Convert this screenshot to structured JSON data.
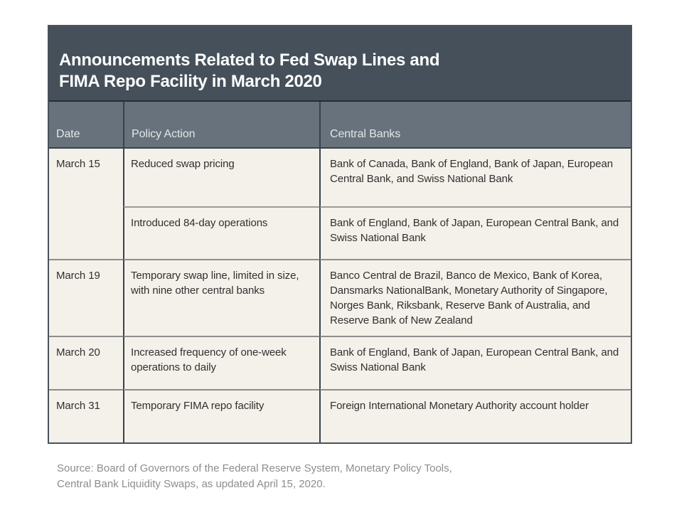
{
  "figure": {
    "title_line1": "Announcements Related to Fed Swap Lines and",
    "title_line2": "FIMA Repo Facility in March 2020",
    "source_line1": "Source: Board of Governors of the Federal Reserve System, Monetary Policy Tools,",
    "source_line2": "Central Bank Liquidity Swaps, as updated April 15, 2020."
  },
  "table": {
    "columns": [
      "Date",
      "Policy Action",
      "Central Banks"
    ],
    "rows": [
      {
        "date": "March 15",
        "action": "Reduced swap pricing",
        "banks": "Bank of Canada, Bank of England, Bank of Japan, European Central Bank, and Swiss National Bank"
      },
      {
        "date": "",
        "action": "Introduced 84-day operations",
        "banks": "Bank of England, Bank of Japan, European Central Bank, and Swiss National Bank"
      },
      {
        "date": "March 19",
        "action": "Temporary swap line, limited in size, with nine other central banks",
        "banks": "Banco Central de Brazil, Banco de Mexico, Bank of Korea, Dansmarks NationalBank, Monetary Authority of Singapore, Norges Bank, Riksbank, Reserve Bank of Australia, and Reserve Bank of New Zealand"
      },
      {
        "date": "March 20",
        "action": "Increased frequency of one-week operations to daily",
        "banks": "Bank of England, Bank of Japan, European Central Bank, and Swiss National Bank"
      },
      {
        "date": "March 31",
        "action": "Temporary FIMA repo facility",
        "banks": "Foreign International Monetary Authority account holder"
      }
    ]
  },
  "chart_data": {
    "type": "table",
    "title": "Announcements Related to Fed Swap Lines and FIMA Repo Facility in March 2020",
    "columns": [
      "Date",
      "Policy Action",
      "Central Banks"
    ],
    "rows": [
      [
        "March 15",
        "Reduced swap pricing",
        "Bank of Canada, Bank of England, Bank of Japan, European Central Bank, and Swiss National Bank"
      ],
      [
        "March 15",
        "Introduced 84-day operations",
        "Bank of England, Bank of Japan, European Central Bank, and Swiss National Bank"
      ],
      [
        "March 19",
        "Temporary swap line, limited in size, with nine other central banks",
        "Banco Central de Brazil, Banco de Mexico, Bank of Korea, Dansmarks NationalBank, Monetary Authority of Singapore, Norges Bank, Riksbank, Reserve Bank of Australia, and Reserve Bank of New Zealand"
      ],
      [
        "March 20",
        "Increased frequency of one-week operations to daily",
        "Bank of England, Bank of Japan, European Central Bank, and Swiss National Bank"
      ],
      [
        "March 31",
        "Temporary FIMA repo facility",
        "Foreign International Monetary Authority account holder"
      ]
    ],
    "source": "Source: Board of Governors of the Federal Reserve System, Monetary Policy Tools, Central Bank Liquidity Swaps, as updated April 15, 2020.",
    "layout_hints": {
      "date_rowspan": "March 15 spans first two policy rows",
      "grid": "on"
    }
  },
  "colors": {
    "title_band_bg": "#45505a",
    "header_row_bg": "#67727c",
    "body_bg": "#f4f1ea",
    "vertical_border": "#39424a",
    "block_divider": "#8d8d8d",
    "sub_divider": "#9b9b9b",
    "title_text": "#ffffff",
    "header_text": "#e3e7e9",
    "body_text": "#303030",
    "source_text": "#8d8d8d"
  }
}
